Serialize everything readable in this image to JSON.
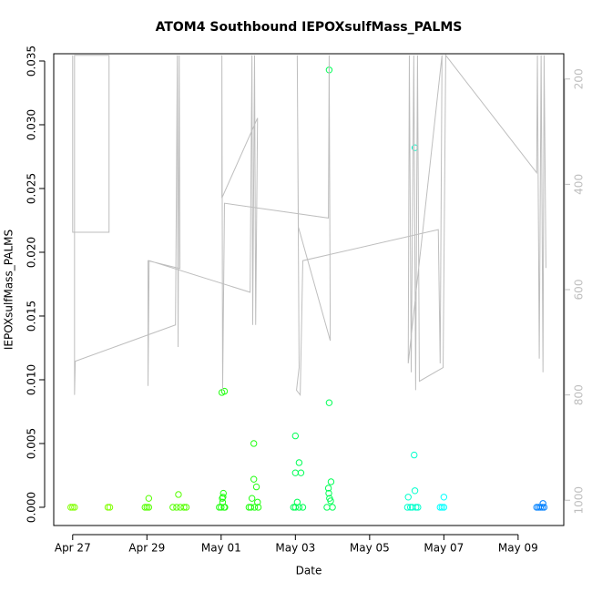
{
  "chart_data": {
    "type": "scatter",
    "title": "ATOM4 Southbound IEPOXsulfMass_PALMS",
    "x_label": "Date",
    "y_label": "IEPOXsulfMass_PALMS",
    "xlim": [
      -0.51,
      13.23
    ],
    "ylim": [
      -0.00143,
      0.03557
    ],
    "y2lim": [
      1048,
      152
    ],
    "xticks": [
      {
        "value": 0,
        "label": "Apr 27"
      },
      {
        "value": 2,
        "label": "Apr 29"
      },
      {
        "value": 4,
        "label": "May 01"
      },
      {
        "value": 6,
        "label": "May 03"
      },
      {
        "value": 8,
        "label": "May 05"
      },
      {
        "value": 10,
        "label": "May 07"
      },
      {
        "value": 12,
        "label": "May 09"
      }
    ],
    "yticks": [
      {
        "value": 0,
        "label": "0.000"
      },
      {
        "value": 0.005,
        "label": "0.005"
      },
      {
        "value": 0.01,
        "label": "0.010"
      },
      {
        "value": 0.015,
        "label": "0.015"
      },
      {
        "value": 0.02,
        "label": "0.020"
      },
      {
        "value": 0.025,
        "label": "0.025"
      },
      {
        "value": 0.03,
        "label": "0.030"
      },
      {
        "value": 0.035,
        "label": "0.035"
      }
    ],
    "y2ticks": [
      200,
      400,
      600,
      800,
      1000
    ],
    "y2_color": "#bebebe",
    "series": [
      {
        "color": "#80ff00",
        "x": [
          -0.05,
          0,
          0.05,
          0.95,
          1.0
        ],
        "values": [
          0,
          0,
          0,
          0,
          0
        ]
      },
      {
        "color": "#55ff00",
        "x": [
          1.95,
          2.0,
          2.05,
          2.05,
          2.7,
          2.8,
          2.85,
          2.9,
          3.0,
          3.06
        ],
        "values": [
          0,
          0,
          0,
          0.0007,
          0,
          0,
          0.001,
          0,
          0,
          0
        ]
      },
      {
        "color": "#22ff11",
        "x": [
          3.95,
          4.0,
          4.02,
          4.09,
          4.03,
          4.05,
          4.06,
          4.04,
          4.08,
          4.1,
          4.75,
          4.8,
          4.88,
          4.88,
          4.95,
          4.83,
          4.98,
          4.9,
          5.0
        ],
        "values": [
          0,
          0,
          0.009,
          0.0091,
          0.0007,
          0.0008,
          0.0011,
          0.0004,
          0,
          0,
          0,
          0,
          0.005,
          0.0022,
          0.0016,
          0.0007,
          0.0004,
          0,
          0
        ]
      },
      {
        "color": "#00ff55",
        "x": [
          5.95,
          6.0,
          6.0,
          6.1,
          6.0,
          6.15,
          6.05,
          6.1,
          6.2,
          6.91,
          6.91,
          6.96,
          6.89,
          6.92,
          6.95,
          6.9,
          6.85,
          7.0
        ],
        "values": [
          0,
          0.0056,
          0,
          0.0035,
          0.0027,
          0.0027,
          0.0004,
          0,
          0,
          0.0343,
          0.0082,
          0.002,
          0.0015,
          0.0007,
          0.0005,
          0.0011,
          0,
          0
        ]
      },
      {
        "color": "#00ffcc",
        "x": [
          9.02,
          9.1,
          9.22,
          9.2,
          9.22,
          9.04,
          9.15,
          9.25,
          9.3
        ],
        "values": [
          0,
          0,
          0.0282,
          0.0041,
          0.0013,
          0.0008,
          0,
          0,
          0
        ]
      },
      {
        "color": "#00ffff",
        "x": [
          9.9,
          9.95,
          10.0,
          10.0
        ],
        "values": [
          0,
          0,
          0.0008,
          0
        ]
      },
      {
        "color": "#0080ff",
        "x": [
          12.5,
          12.55,
          12.6,
          12.65,
          12.67,
          12.7
        ],
        "values": [
          0,
          0,
          0,
          0,
          0.0003,
          0
        ]
      },
      {
        "axis": "y2",
        "line": true,
        "color": "#bebebe",
        "x": [
          0,
          0,
          0.98,
          0.98,
          0.05,
          0.05,
          0.07,
          2.77,
          2.82,
          2.84,
          2.87,
          2.89,
          2.03,
          2.03,
          2.06,
          4.78,
          4.83,
          4.85,
          4.9,
          4.93,
          4.98,
          4.02,
          4.02,
          4.04,
          4.09,
          6.89,
          6.91,
          6.94,
          6.08,
          6.05,
          6.1,
          6.03,
          6.13,
          6.2,
          9.85,
          9.9,
          9.95,
          9.04,
          9.07,
          9.12,
          9.19,
          9.24,
          9.29,
          9.34,
          9.98,
          10.05,
          12.5,
          12.52,
          12.57,
          12.62,
          12.67,
          12.7,
          12.75
        ],
        "values": [
          155,
          491,
          491,
          155,
          155,
          800,
          736,
          667,
          155,
          709,
          155,
          560,
          545,
          783,
          545,
          605,
          155,
          667,
          155,
          667,
          274,
          426,
          155,
          791,
          436,
          464,
          155,
          697,
          481,
          155,
          748,
          791,
          800,
          545,
          486,
          740,
          155,
          740,
          155,
          757,
          155,
          791,
          155,
          774,
          748,
          155,
          378,
          155,
          731,
          155,
          757,
          155,
          559
        ]
      }
    ]
  }
}
